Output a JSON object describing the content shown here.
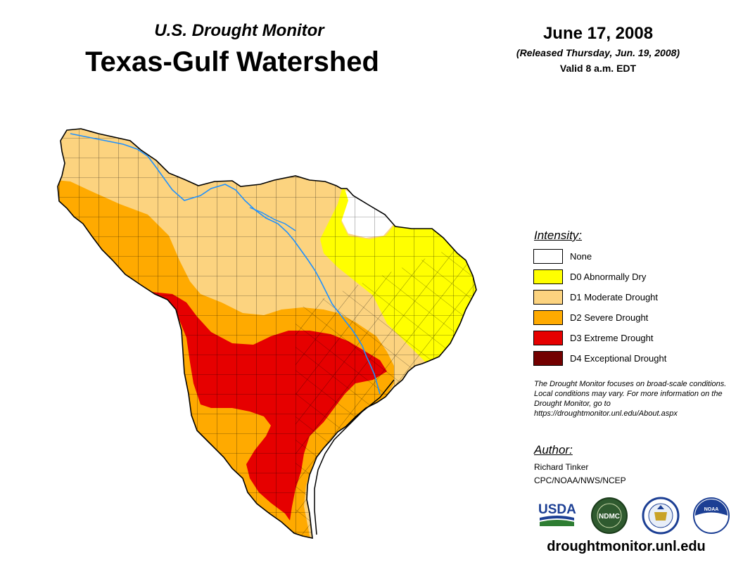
{
  "header": {
    "subtitle": "U.S. Drought Monitor",
    "title": "Texas-Gulf Watershed",
    "date": "June 17, 2008",
    "released": "(Released Thursday, Jun. 19, 2008)",
    "valid": "Valid 8 a.m. EDT"
  },
  "legend": {
    "title": "Intensity:",
    "items": [
      {
        "label": "None",
        "color": "#ffffff"
      },
      {
        "label": "D0 Abnormally Dry",
        "color": "#ffff00"
      },
      {
        "label": "D1 Moderate Drought",
        "color": "#fcd37f"
      },
      {
        "label": "D2 Severe Drought",
        "color": "#ffaa00"
      },
      {
        "label": "D3 Extreme Drought",
        "color": "#e60000"
      },
      {
        "label": "D4 Exceptional Drought",
        "color": "#730000"
      }
    ]
  },
  "note": "The Drought Monitor focuses on broad-scale conditions. Local conditions may vary. For more information on the Drought Monitor, go to https://droughtmonitor.unl.edu/About.aspx",
  "author": {
    "title": "Author:",
    "name": "Richard Tinker",
    "org": "CPC/NOAA/NWS/NCEP"
  },
  "logos": {
    "usda": "USDA",
    "ndmc": "NDMC",
    "noaa": "NOAA"
  },
  "footer": {
    "site": "droughtmonitor.unl.edu"
  },
  "colors": {
    "river": "#1e90ff",
    "county_line": "#000000"
  }
}
